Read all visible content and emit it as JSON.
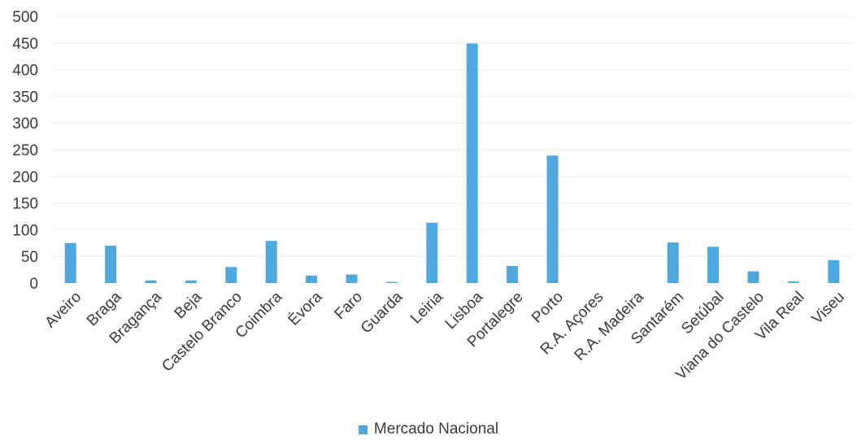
{
  "chart_data": {
    "type": "bar",
    "categories": [
      "Aveiro",
      "Braga",
      "Bragança",
      "Beja",
      "Castelo Branco",
      "Coimbra",
      "Évora",
      "Faro",
      "Guarda",
      "Leiria",
      "Lisboa",
      "Portalegre",
      "Porto",
      "R.A. Açores",
      "R.A. Madeira",
      "Santarém",
      "Setúbal",
      "Viana do Castelo",
      "Vila Real",
      "Viseu"
    ],
    "series": [
      {
        "name": "Mercado Nacional",
        "color": "#4fa9de",
        "values": [
          75,
          70,
          5,
          5,
          30,
          79,
          14,
          16,
          2,
          113,
          449,
          32,
          239,
          0,
          0,
          76,
          68,
          22,
          3,
          43
        ]
      }
    ],
    "ylim": [
      0,
      500
    ],
    "yticks": [
      0,
      50,
      100,
      150,
      200,
      250,
      300,
      350,
      400,
      450,
      500
    ],
    "grid": true,
    "legend_position": "bottom"
  }
}
